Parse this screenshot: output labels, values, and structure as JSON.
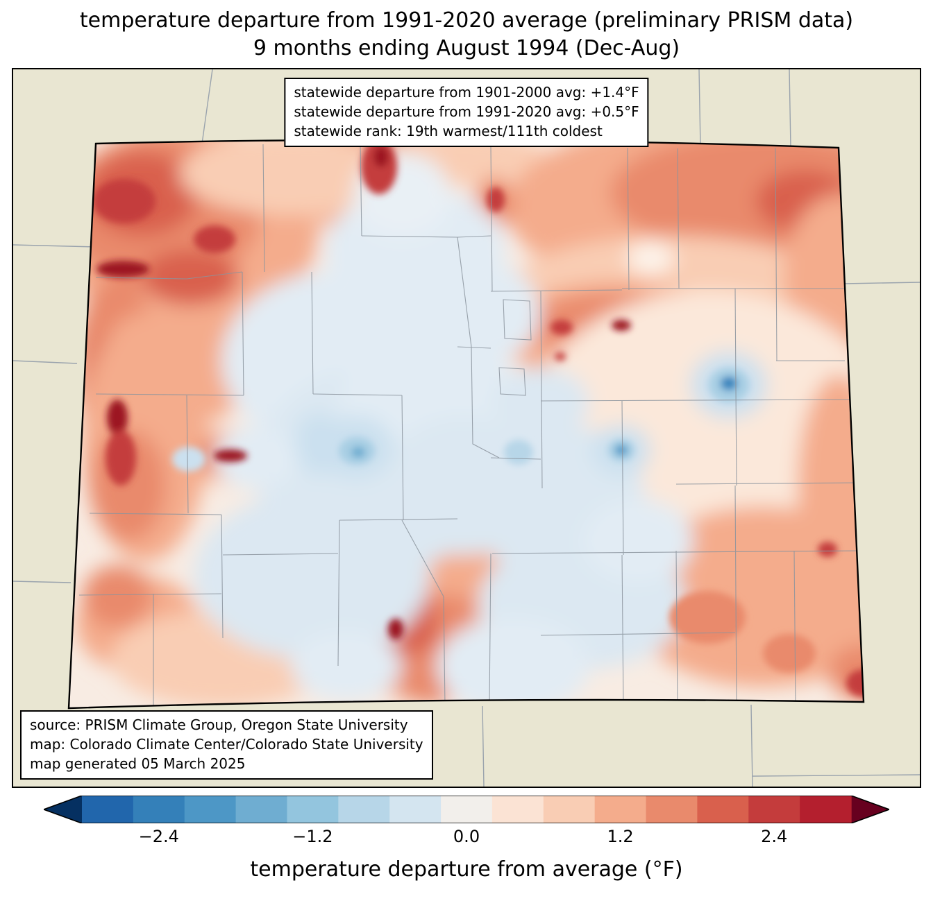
{
  "title": {
    "line1": "temperature departure from 1991-2020 average (preliminary PRISM data)",
    "line2": "9 months ending August 1994 (Dec-Aug)"
  },
  "stats_box": {
    "lines": [
      "statewide departure from 1901-2000 avg: +1.4°F",
      "statewide departure from 1991-2020 avg: +0.5°F",
      "statewide rank: 19th warmest/111th coldest"
    ]
  },
  "source_box": {
    "lines": [
      "source: PRISM Climate Group, Oregon State University",
      "map: Colorado Climate Center/Colorado State University",
      "map generated 05 March 2025"
    ]
  },
  "colorbar": {
    "label": "temperature departure from average (°F)",
    "min": -3.0,
    "max": 3.0,
    "under_color": "#053061",
    "over_color": "#67001f",
    "segment_colors": [
      "#2166ac",
      "#3480b9",
      "#4d97c6",
      "#6fadd1",
      "#93c5de",
      "#b7d6e8",
      "#d4e5f0",
      "#f2efeb",
      "#fbe3d4",
      "#f9cdb4",
      "#f4ac8c",
      "#e98a6c",
      "#d9604d",
      "#c43c3c",
      "#b41f2e"
    ],
    "ticks": [
      {
        "value": -2.4,
        "label": "−2.4"
      },
      {
        "value": -1.2,
        "label": "−1.2"
      },
      {
        "value": 0.0,
        "label": "0.0"
      },
      {
        "value": 1.2,
        "label": "1.2"
      },
      {
        "value": 2.4,
        "label": "2.4"
      }
    ]
  },
  "map": {
    "region": "Colorado",
    "land_color": "#e9e6d2",
    "county_line_color": "#8b949e",
    "state_outline_color": "#000000",
    "visual_summary": [
      "strong warm anomalies over northwest and west-central Colorado with deep-red local maxima",
      "warm band across the northern and northeastern plains",
      "near-normal to slightly cool central mountains and valleys",
      "isolated cool spots on the east-central plains",
      "warm anomaly over the south-central mountains"
    ]
  }
}
